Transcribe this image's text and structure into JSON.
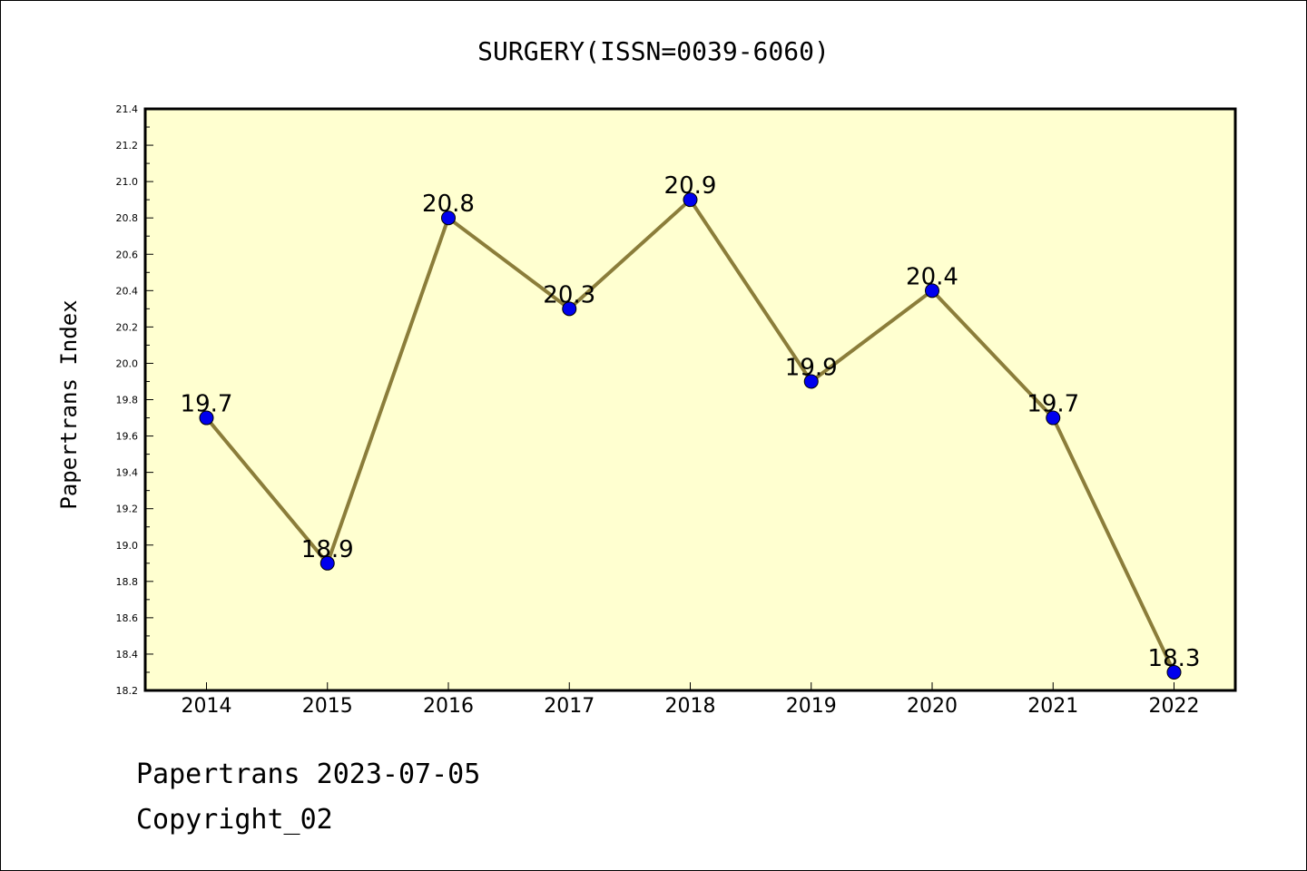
{
  "chart_data": {
    "type": "line",
    "title": "SURGERY(ISSN=0039-6060)",
    "xlabel": "",
    "ylabel": "Papertrans Index",
    "x": [
      "2014",
      "2015",
      "2016",
      "2017",
      "2018",
      "2019",
      "2020",
      "2021",
      "2022"
    ],
    "values": [
      19.7,
      18.9,
      20.8,
      20.3,
      20.9,
      19.9,
      20.4,
      19.7,
      18.3
    ],
    "data_labels": [
      "19.7",
      "18.9",
      "20.8",
      "20.3",
      "20.9",
      "19.9",
      "20.4",
      "19.7",
      "18.3"
    ],
    "ylim": [
      18.2,
      21.4
    ],
    "yticks": [
      "18.2",
      "18.4",
      "18.6",
      "18.8",
      "19.0",
      "19.2",
      "19.4",
      "19.6",
      "19.8",
      "20.0",
      "20.2",
      "20.4",
      "20.6",
      "20.8",
      "21.0",
      "21.2",
      "21.4"
    ],
    "grid": false,
    "colors": {
      "plot_background": "#ffffd0",
      "line": "#8b7d3a",
      "marker_fill": "#0000ee",
      "marker_edge": "#000000"
    }
  },
  "footer": {
    "date_line": "Papertrans 2023-07-05",
    "copyright_line": "Copyright_02"
  }
}
